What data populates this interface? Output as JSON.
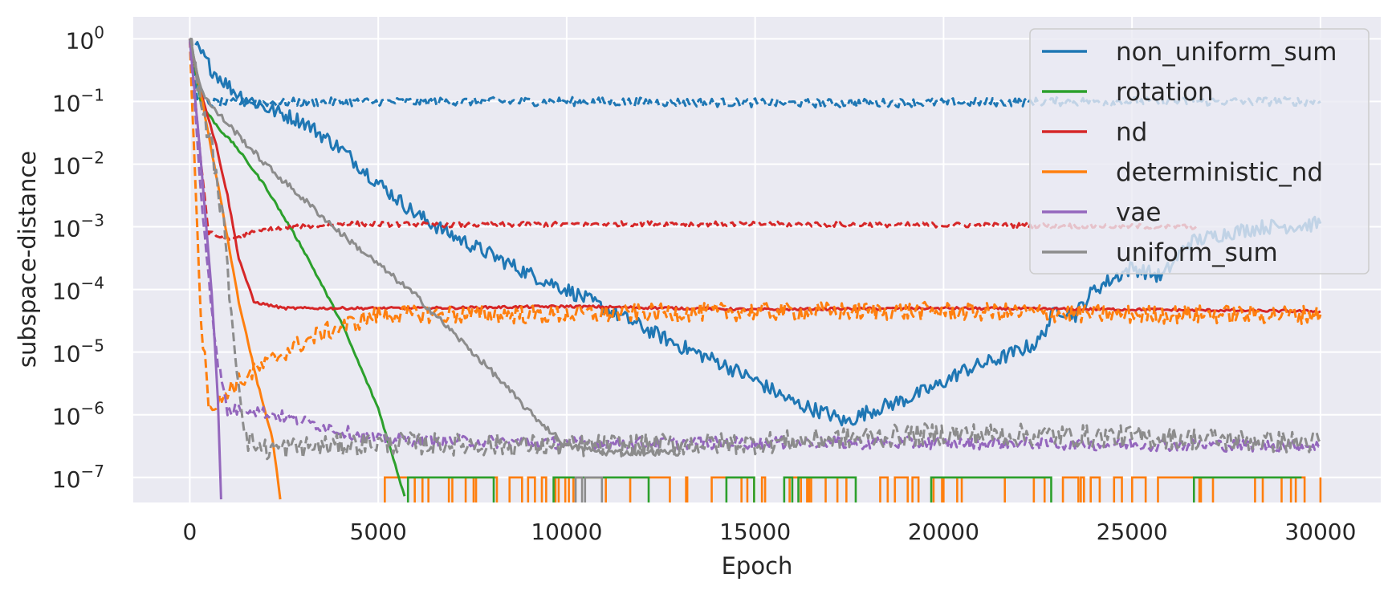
{
  "chart_data": {
    "type": "line",
    "title": "",
    "xlabel": "Epoch",
    "ylabel": "subspace-distance",
    "yscale": "log",
    "xlim": [
      -1500,
      31600
    ],
    "ylim_exp": [
      -7.4,
      0.35
    ],
    "x_ticks": [
      0,
      5000,
      10000,
      15000,
      20000,
      25000,
      30000
    ],
    "y_ticks_exp": [
      0,
      -1,
      -2,
      -3,
      -4,
      -5,
      -6,
      -7
    ],
    "y_tick_base": "10",
    "grid": true,
    "legend_position": "top-right",
    "colors": {
      "background": "#eaeaf2",
      "grid": "#ffffff",
      "non_uniform_sum": "#1f77b4",
      "rotation": "#2ca02c",
      "nd": "#d62728",
      "deterministic_nd": "#ff7f0e",
      "vae": "#9467bd",
      "uniform_sum": "#8c8c8c"
    },
    "legend": [
      "non_uniform_sum",
      "rotation",
      "nd",
      "deterministic_nd",
      "vae",
      "uniform_sum"
    ],
    "line_styles": {
      "solid": "training (solid line)",
      "dashed": "validation (dashed line)"
    },
    "series": [
      {
        "name": "non_uniform_sum",
        "style": "solid",
        "color": "#1f77b4",
        "points": [
          [
            150,
            -0.1
          ],
          [
            600,
            -0.5
          ],
          [
            1200,
            -0.85
          ],
          [
            2000,
            -1.1
          ],
          [
            3000,
            -1.32
          ],
          [
            4000,
            -1.75
          ],
          [
            5000,
            -2.3
          ],
          [
            6000,
            -2.8
          ],
          [
            7000,
            -3.15
          ],
          [
            8000,
            -3.45
          ],
          [
            9000,
            -3.75
          ],
          [
            10000,
            -4.0
          ],
          [
            11000,
            -4.3
          ],
          [
            12000,
            -4.6
          ],
          [
            13000,
            -4.9
          ],
          [
            14000,
            -5.15
          ],
          [
            15000,
            -5.45
          ],
          [
            16000,
            -5.8
          ],
          [
            17000,
            -6.0
          ],
          [
            17400,
            -6.12
          ],
          [
            18000,
            -5.95
          ],
          [
            19000,
            -5.75
          ],
          [
            19800,
            -5.55
          ],
          [
            20500,
            -5.3
          ],
          [
            21500,
            -5.1
          ],
          [
            22500,
            -4.85
          ],
          [
            23000,
            -4.3
          ],
          [
            23500,
            -4.4
          ],
          [
            24000,
            -4.0
          ],
          [
            25000,
            -3.65
          ],
          [
            25800,
            -3.8
          ],
          [
            26500,
            -3.25
          ],
          [
            27500,
            -3.1
          ],
          [
            28500,
            -3.0
          ],
          [
            29500,
            -2.98
          ],
          [
            30000,
            -2.95
          ]
        ],
        "noise": 0.12
      },
      {
        "name": "non_uniform_sum",
        "style": "dashed",
        "color": "#1f77b4",
        "points": [
          [
            0,
            -0.05
          ],
          [
            200,
            -0.9
          ],
          [
            500,
            -1.02
          ],
          [
            3000,
            -1.01
          ],
          [
            10000,
            -1.0
          ],
          [
            17000,
            -1.03
          ],
          [
            24000,
            -1.0
          ],
          [
            30000,
            -1.0
          ]
        ],
        "noise": 0.07
      },
      {
        "name": "rotation",
        "style": "solid",
        "color": "#2ca02c",
        "points": [
          [
            50,
            -0.1
          ],
          [
            300,
            -1.05
          ],
          [
            800,
            -1.45
          ],
          [
            1200,
            -1.7
          ],
          [
            2000,
            -2.35
          ],
          [
            3000,
            -3.35
          ],
          [
            4000,
            -4.5
          ],
          [
            5000,
            -5.9
          ],
          [
            5700,
            -7.3
          ]
        ],
        "noise": 0.02
      },
      {
        "name": "nd",
        "style": "solid",
        "color": "#d62728",
        "points": [
          [
            0,
            0
          ],
          [
            300,
            -0.85
          ],
          [
            700,
            -1.7
          ],
          [
            1000,
            -2.5
          ],
          [
            1300,
            -3.5
          ],
          [
            1700,
            -4.2
          ],
          [
            2500,
            -4.3
          ],
          [
            6000,
            -4.3
          ],
          [
            10000,
            -4.27
          ],
          [
            15000,
            -4.32
          ],
          [
            20000,
            -4.3
          ],
          [
            25000,
            -4.32
          ],
          [
            30000,
            -4.35
          ]
        ],
        "noise": 0.02
      },
      {
        "name": "nd",
        "style": "dashed",
        "color": "#d62728",
        "points": [
          [
            0,
            0
          ],
          [
            300,
            -2.0
          ],
          [
            500,
            -3.1
          ],
          [
            1000,
            -3.2
          ],
          [
            2000,
            -3.05
          ],
          [
            4000,
            -2.95
          ],
          [
            7000,
            -2.97
          ],
          [
            12000,
            -2.95
          ],
          [
            20000,
            -2.97
          ],
          [
            26700,
            -3.0
          ]
        ],
        "noise": 0.04
      },
      {
        "name": "deterministic_nd",
        "style": "solid",
        "color": "#ff7f0e",
        "points": [
          [
            0,
            0
          ],
          [
            300,
            -0.9
          ],
          [
            800,
            -2.5
          ],
          [
            1300,
            -4.2
          ],
          [
            1800,
            -5.5
          ],
          [
            2200,
            -6.4
          ],
          [
            2400,
            -7.35
          ]
        ],
        "noise": 0.02
      },
      {
        "name": "deterministic_nd",
        "style": "dashed",
        "color": "#ff7f0e",
        "points": [
          [
            0,
            0
          ],
          [
            100,
            -1.5
          ],
          [
            300,
            -4.5
          ],
          [
            500,
            -5.75
          ],
          [
            700,
            -5.9
          ],
          [
            1000,
            -5.6
          ],
          [
            1500,
            -5.4
          ],
          [
            2500,
            -5.0
          ],
          [
            3500,
            -4.7
          ],
          [
            5000,
            -4.4
          ],
          [
            7000,
            -4.4
          ],
          [
            10000,
            -4.4
          ],
          [
            15000,
            -4.35
          ],
          [
            20000,
            -4.35
          ],
          [
            25000,
            -4.4
          ],
          [
            30000,
            -4.4
          ]
        ],
        "noise": 0.15
      },
      {
        "name": "vae",
        "style": "solid",
        "color": "#9467bd",
        "points": [
          [
            0,
            0
          ],
          [
            300,
            -2.0
          ],
          [
            600,
            -4.2
          ],
          [
            750,
            -5.8
          ],
          [
            830,
            -7.35
          ]
        ],
        "noise": 0.02
      },
      {
        "name": "vae",
        "style": "dashed",
        "color": "#9467bd",
        "points": [
          [
            0,
            0
          ],
          [
            300,
            -2.5
          ],
          [
            700,
            -5.0
          ],
          [
            1000,
            -5.95
          ],
          [
            1500,
            -5.9
          ],
          [
            3000,
            -6.1
          ],
          [
            5000,
            -6.4
          ],
          [
            10000,
            -6.45
          ],
          [
            20000,
            -6.45
          ],
          [
            30000,
            -6.5
          ]
        ],
        "noise": 0.1
      },
      {
        "name": "uniform_sum",
        "style": "solid",
        "color": "#8c8c8c",
        "points": [
          [
            0,
            0
          ],
          [
            300,
            -0.8
          ],
          [
            600,
            -1.1
          ],
          [
            1000,
            -1.35
          ],
          [
            2000,
            -2.0
          ],
          [
            3000,
            -2.55
          ],
          [
            4000,
            -3.1
          ],
          [
            5000,
            -3.6
          ],
          [
            6000,
            -4.1
          ],
          [
            7000,
            -4.7
          ],
          [
            8000,
            -5.3
          ],
          [
            9000,
            -5.95
          ],
          [
            10000,
            -6.5
          ],
          [
            11000,
            -6.6
          ],
          [
            13000,
            -6.6
          ]
        ],
        "noise": 0.05
      },
      {
        "name": "uniform_sum",
        "style": "dashed",
        "color": "#8c8c8c",
        "points": [
          [
            0,
            0
          ],
          [
            300,
            -1.0
          ],
          [
            600,
            -1.8
          ],
          [
            900,
            -3.0
          ],
          [
            1200,
            -5.0
          ],
          [
            1500,
            -6.4
          ],
          [
            2000,
            -6.55
          ],
          [
            5000,
            -6.45
          ],
          [
            10000,
            -6.5
          ],
          [
            15000,
            -6.45
          ],
          [
            20000,
            -6.3
          ],
          [
            25000,
            -6.35
          ],
          [
            30000,
            -6.45
          ]
        ],
        "noise": 0.18
      }
    ],
    "quantized_floor": {
      "description": "step trace jumping between 1e-7 and the plot floor",
      "series": [
        {
          "name": "deterministic_nd",
          "color": "#ff7f0e",
          "x_range": [
            5000,
            30000
          ],
          "value_exp": -7.0,
          "density": 0.45
        },
        {
          "name": "rotation",
          "color": "#2ca02c",
          "x_range": [
            5600,
            29500
          ],
          "value_exp": -7.0,
          "density": 0.06
        },
        {
          "name": "uniform_sum",
          "color": "#8c8c8c",
          "x_range": [
            10000,
            11000
          ],
          "value_exp": -7.0,
          "density": 0.5
        }
      ]
    }
  }
}
